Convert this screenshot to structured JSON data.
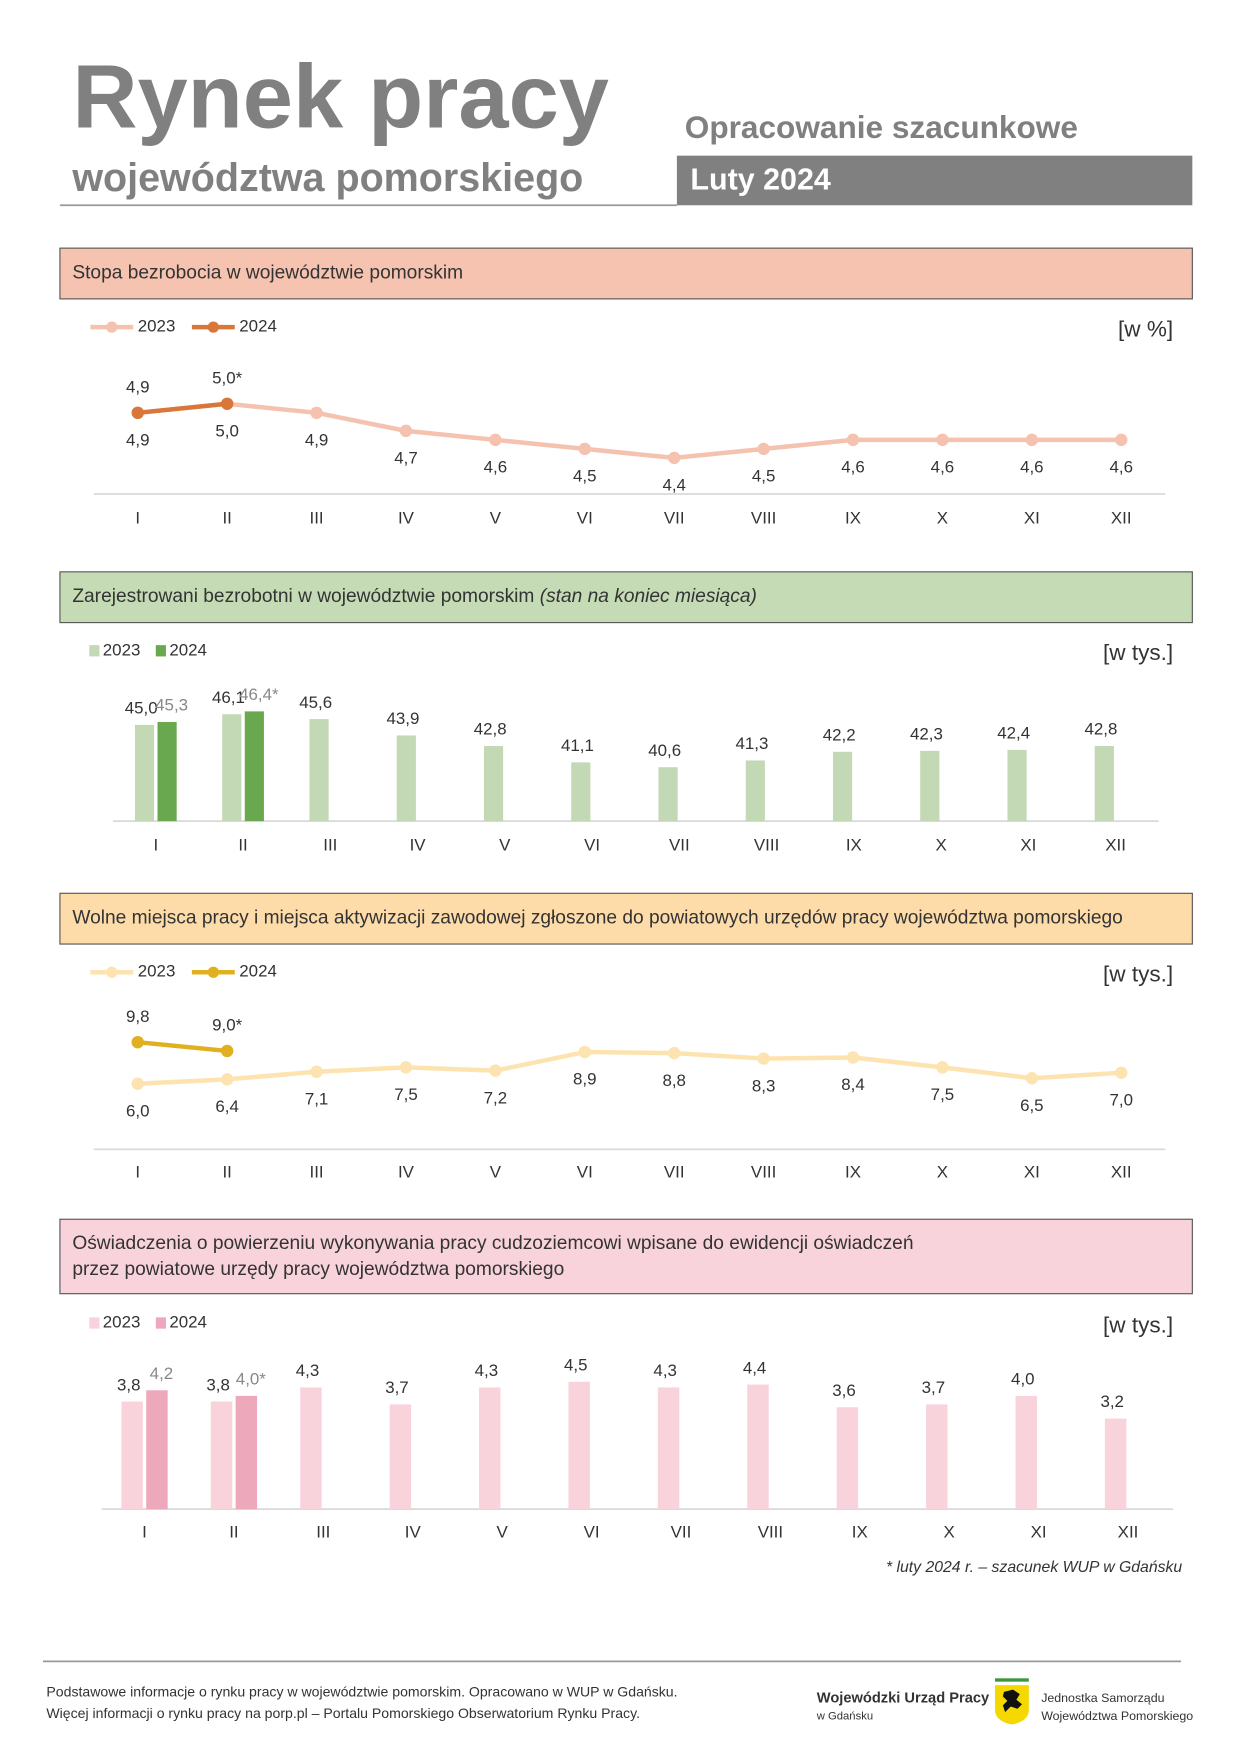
{
  "header": {
    "title": "Rynek pracy",
    "subtitle": "województwa pomorskiego",
    "note": "Opracowanie szacunkowe",
    "period": "Luty 2024"
  },
  "chart_data": [
    {
      "type": "line",
      "title": "Stopa bezrobocia w województwie pomorskim",
      "unit": "[w %]",
      "categories": [
        "I",
        "II",
        "III",
        "IV",
        "V",
        "VI",
        "VII",
        "VIII",
        "IX",
        "X",
        "XI",
        "XII"
      ],
      "ylim": [
        4.0,
        5.5
      ],
      "series": [
        {
          "name": "2023",
          "color": "#f4c2ae",
          "values": [
            4.9,
            5.0,
            4.9,
            4.7,
            4.6,
            4.5,
            4.4,
            4.5,
            4.6,
            4.6,
            4.6,
            4.6
          ],
          "value_labels": [
            "4,9",
            "5,0",
            "4,9",
            "4,7",
            "4,6",
            "4,5",
            "4,4",
            "4,5",
            "4,6",
            "4,6",
            "4,6",
            "4,6"
          ]
        },
        {
          "name": "2024",
          "color": "#d9773a",
          "values": [
            4.9,
            5.0,
            null,
            null,
            null,
            null,
            null,
            null,
            null,
            null,
            null,
            null
          ],
          "value_labels": [
            "4,9",
            "5,0*",
            null,
            null,
            null,
            null,
            null,
            null,
            null,
            null,
            null,
            null
          ]
        }
      ]
    },
    {
      "type": "bar",
      "title": "Zarejestrowani bezrobotni w województwie pomorskim",
      "subtitle": "(stan na koniec miesiąca)",
      "unit": "[w tys.]",
      "categories": [
        "I",
        "II",
        "III",
        "IV",
        "V",
        "VI",
        "VII",
        "VIII",
        "IX",
        "X",
        "XI",
        "XII"
      ],
      "ylim": [
        35,
        50
      ],
      "series": [
        {
          "name": "2023",
          "color": "#c3d8b5",
          "values": [
            45.0,
            46.1,
            45.6,
            43.9,
            42.8,
            41.1,
            40.6,
            41.3,
            42.2,
            42.3,
            42.4,
            42.8
          ],
          "value_labels": [
            "45,0",
            "46,1",
            "45,6",
            "43,9",
            "42,8",
            "41,1",
            "40,6",
            "41,3",
            "42,2",
            "42,3",
            "42,4",
            "42,8"
          ]
        },
        {
          "name": "2024",
          "color": "#6aa84f",
          "values": [
            45.3,
            46.4,
            null,
            null,
            null,
            null,
            null,
            null,
            null,
            null,
            null,
            null
          ],
          "value_labels": [
            "45,3",
            "46,4*",
            null,
            null,
            null,
            null,
            null,
            null,
            null,
            null,
            null,
            null
          ]
        }
      ]
    },
    {
      "type": "line",
      "title": "Wolne miejsca pracy i miejsca aktywizacji zawodowej zgłoszone do powiatowych urzędów pracy województwa pomorskiego",
      "unit": "[w tys.]",
      "categories": [
        "I",
        "II",
        "III",
        "IV",
        "V",
        "VI",
        "VII",
        "VIII",
        "IX",
        "X",
        "XI",
        "XII"
      ],
      "ylim": [
        0,
        13
      ],
      "series": [
        {
          "name": "2023",
          "color": "#fde3b0",
          "values": [
            6.0,
            6.4,
            7.1,
            7.5,
            7.2,
            8.9,
            8.8,
            8.3,
            8.4,
            7.5,
            6.5,
            7.0
          ],
          "value_labels": [
            "6,0",
            "6,4",
            "7,1",
            "7,5",
            "7,2",
            "8,9",
            "8,8",
            "8,3",
            "8,4",
            "7,5",
            "6,5",
            "7,0"
          ]
        },
        {
          "name": "2024",
          "color": "#e0b020",
          "values": [
            9.8,
            9.0,
            null,
            null,
            null,
            null,
            null,
            null,
            null,
            null,
            null,
            null
          ],
          "value_labels": [
            "9,8",
            "9,0*",
            null,
            null,
            null,
            null,
            null,
            null,
            null,
            null,
            null,
            null
          ]
        }
      ]
    },
    {
      "type": "bar",
      "title": [
        "Oświadczenia o powierzeniu wykonywania pracy cudzoziemcowi wpisane do ewidencji oświadczeń",
        "przez powiatowe urzędy pracy województwa pomorskiego"
      ],
      "unit": "[w tys.]",
      "categories": [
        "I",
        "II",
        "III",
        "IV",
        "V",
        "VI",
        "VII",
        "VIII",
        "IX",
        "X",
        "XI",
        "XII"
      ],
      "ylim": [
        0,
        5.5
      ],
      "series": [
        {
          "name": "2023",
          "color": "#f8d3dc",
          "values": [
            3.8,
            3.8,
            4.3,
            3.7,
            4.3,
            4.5,
            4.3,
            4.4,
            3.6,
            3.7,
            4.0,
            3.2
          ],
          "value_labels": [
            "3,8",
            "3,8",
            "4,3",
            "3,7",
            "4,3",
            "4,5",
            "4,3",
            "4,4",
            "3,6",
            "3,7",
            "4,0",
            "3,2"
          ]
        },
        {
          "name": "2024",
          "color": "#eea8bb",
          "values": [
            4.2,
            4.0,
            null,
            null,
            null,
            null,
            null,
            null,
            null,
            null,
            null,
            null
          ],
          "value_labels": [
            "4,2",
            "4,0*",
            null,
            null,
            null,
            null,
            null,
            null,
            null,
            null,
            null,
            null
          ]
        }
      ]
    }
  ],
  "footnote": "* luty 2024 r. – szacunek WUP w Gdańsku",
  "footer": {
    "lines": [
      "Podstawowe informacje o rynku pracy w województwie pomorskim. Opracowano w WUP w Gdańsku.",
      "Więcej informacji o rynku pracy na porp.pl – Portalu Pomorskiego Obserwatorium Rynku Pracy."
    ],
    "logo1": [
      "Wojewódzki Urząd Pracy",
      "w Gdańsku"
    ],
    "logo2": [
      "Jednostka Samorządu",
      "Województwa Pomorskiego"
    ]
  }
}
